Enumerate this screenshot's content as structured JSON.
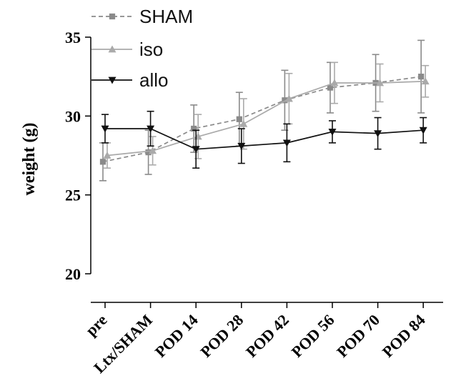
{
  "chart_data": {
    "type": "line",
    "title": "",
    "xlabel": "",
    "ylabel": "weight (g)",
    "categories": [
      "pre",
      "Ltx/SHAM",
      "POD 14",
      "POD 28",
      "POD 42",
      "POD 56",
      "POD 70",
      "POD 84"
    ],
    "yticks": [
      "20",
      "25",
      "30",
      "35"
    ],
    "ylim": [
      20,
      35
    ],
    "grid": false,
    "legend_position": "top-left",
    "series": [
      {
        "name": "SHAM",
        "values": [
          27.1,
          27.7,
          29.2,
          29.8,
          31.0,
          31.8,
          32.1,
          32.5
        ],
        "errors": [
          1.2,
          1.4,
          1.5,
          1.7,
          1.9,
          1.6,
          1.8,
          2.3
        ],
        "color": "#8a8a8a",
        "line": "dashed",
        "marker": "square"
      },
      {
        "name": "iso",
        "values": [
          27.5,
          27.8,
          28.7,
          29.5,
          31.1,
          32.1,
          32.1,
          32.2
        ],
        "errors": [
          0.8,
          0.9,
          1.4,
          1.6,
          1.6,
          1.3,
          1.2,
          1.0
        ],
        "color": "#aaaaaa",
        "line": "solid",
        "marker": "triangle-up"
      },
      {
        "name": "allo",
        "values": [
          29.2,
          29.2,
          27.9,
          28.1,
          28.3,
          29.0,
          28.9,
          29.1
        ],
        "errors": [
          0.9,
          1.1,
          1.2,
          1.1,
          1.2,
          0.7,
          1.0,
          0.8
        ],
        "color": "#111111",
        "line": "solid",
        "marker": "triangle-down"
      }
    ]
  }
}
